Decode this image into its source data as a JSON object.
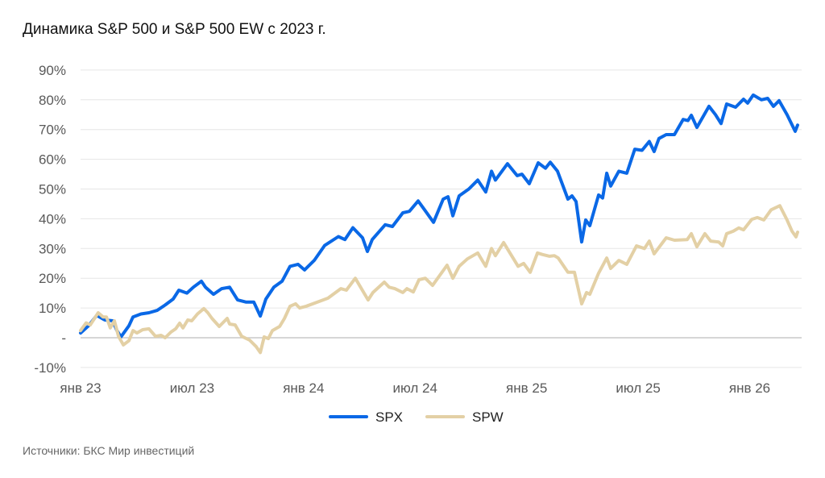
{
  "chart_data": {
    "type": "line",
    "title": "Динамика S&P 500 и S&P 500 EW с 2023 г.",
    "xlabel": "",
    "ylabel": "",
    "x_unit": "months since Jan 2023",
    "xlim": [
      0,
      38.8
    ],
    "ylim": [
      -10,
      90
    ],
    "grid": true,
    "legend_position": "bottom",
    "y_ticks": [
      {
        "value": 90,
        "label": "90%"
      },
      {
        "value": 80,
        "label": "80%"
      },
      {
        "value": 70,
        "label": "70%"
      },
      {
        "value": 60,
        "label": "60%"
      },
      {
        "value": 50,
        "label": "50%"
      },
      {
        "value": 40,
        "label": "40%"
      },
      {
        "value": 30,
        "label": "30%"
      },
      {
        "value": 20,
        "label": "20%"
      },
      {
        "value": 10,
        "label": "10%"
      },
      {
        "value": 0,
        "label": "-"
      },
      {
        "value": -10,
        "label": "-10%"
      }
    ],
    "x_ticks": [
      {
        "value": 0,
        "label": "янв 23"
      },
      {
        "value": 6,
        "label": "июл 23"
      },
      {
        "value": 12,
        "label": "янв 24"
      },
      {
        "value": 18,
        "label": "июл 24"
      },
      {
        "value": 24,
        "label": "янв 25"
      },
      {
        "value": 30,
        "label": "июл 25"
      },
      {
        "value": 36,
        "label": "янв 26"
      }
    ],
    "series": [
      {
        "name": "SPX",
        "color": "#0a68e6",
        "points": [
          [
            0,
            1.6
          ],
          [
            0.43,
            4
          ],
          [
            0.87,
            7.5
          ],
          [
            1.3,
            6
          ],
          [
            1.73,
            5.7
          ],
          [
            1.95,
            2.5
          ],
          [
            2.17,
            0.3
          ],
          [
            2.6,
            4
          ],
          [
            2.82,
            7
          ],
          [
            3.25,
            8
          ],
          [
            3.68,
            8.4
          ],
          [
            4.12,
            9.2
          ],
          [
            4.55,
            11
          ],
          [
            4.98,
            13
          ],
          [
            5.29,
            16
          ],
          [
            5.72,
            15
          ],
          [
            6.07,
            17
          ],
          [
            6.5,
            19
          ],
          [
            6.72,
            17
          ],
          [
            7.15,
            14.6
          ],
          [
            7.59,
            16.5
          ],
          [
            8.02,
            17
          ],
          [
            8.45,
            12.7
          ],
          [
            8.89,
            12
          ],
          [
            9.32,
            12
          ],
          [
            9.67,
            7.3
          ],
          [
            9.97,
            13
          ],
          [
            10.4,
            17
          ],
          [
            10.84,
            19
          ],
          [
            11.27,
            24
          ],
          [
            11.7,
            24.7
          ],
          [
            12.05,
            22.8
          ],
          [
            12.57,
            26
          ],
          [
            13.13,
            31
          ],
          [
            13.87,
            34
          ],
          [
            14.22,
            33
          ],
          [
            14.65,
            37
          ],
          [
            15.17,
            33.6
          ],
          [
            15.43,
            29
          ],
          [
            15.69,
            33
          ],
          [
            16.39,
            38
          ],
          [
            16.78,
            37.4
          ],
          [
            17.34,
            42
          ],
          [
            17.69,
            42.5
          ],
          [
            18.16,
            46
          ],
          [
            18.51,
            43
          ],
          [
            18.99,
            38.8
          ],
          [
            19.51,
            46.6
          ],
          [
            19.77,
            47.4
          ],
          [
            20.03,
            41
          ],
          [
            20.37,
            47.7
          ],
          [
            20.89,
            50
          ],
          [
            21.37,
            53
          ],
          [
            21.8,
            49
          ],
          [
            22.11,
            56
          ],
          [
            22.32,
            53
          ],
          [
            22.97,
            58.5
          ],
          [
            23.49,
            54.5
          ],
          [
            23.75,
            55
          ],
          [
            24.14,
            51.8
          ],
          [
            24.62,
            58.8
          ],
          [
            25.01,
            57
          ],
          [
            25.27,
            59
          ],
          [
            25.66,
            56
          ],
          [
            26.22,
            46.6
          ],
          [
            26.44,
            47.7
          ],
          [
            26.66,
            45.8
          ],
          [
            26.96,
            32.2
          ],
          [
            27.18,
            39.6
          ],
          [
            27.4,
            37.7
          ],
          [
            27.87,
            48
          ],
          [
            28.09,
            47
          ],
          [
            28.31,
            55.3
          ],
          [
            28.52,
            51
          ],
          [
            28.96,
            56
          ],
          [
            29.39,
            55.3
          ],
          [
            29.82,
            63.4
          ],
          [
            30.21,
            63
          ],
          [
            30.6,
            66
          ],
          [
            30.86,
            62.6
          ],
          [
            31.12,
            67
          ],
          [
            31.51,
            68.3
          ],
          [
            31.95,
            68.3
          ],
          [
            32.42,
            73.4
          ],
          [
            32.68,
            73
          ],
          [
            32.86,
            74.8
          ],
          [
            33.16,
            70.7
          ],
          [
            33.81,
            77.8
          ],
          [
            34.16,
            75
          ],
          [
            34.46,
            72
          ],
          [
            34.76,
            78.6
          ],
          [
            35.24,
            77.5
          ],
          [
            35.67,
            80.2
          ],
          [
            35.89,
            78.9
          ],
          [
            36.19,
            81.6
          ],
          [
            36.63,
            80
          ],
          [
            36.97,
            80.5
          ],
          [
            37.28,
            77.8
          ],
          [
            37.58,
            79.7
          ],
          [
            38.01,
            75
          ],
          [
            38.45,
            69.4
          ],
          [
            38.58,
            71.5
          ]
        ]
      },
      {
        "name": "SPW",
        "color": "#e3d0a5",
        "points": [
          [
            0,
            2.4
          ],
          [
            0.3,
            5
          ],
          [
            0.52,
            4.3
          ],
          [
            0.95,
            8.4
          ],
          [
            1.21,
            7
          ],
          [
            1.39,
            7
          ],
          [
            1.6,
            3.3
          ],
          [
            1.82,
            5.7
          ],
          [
            2.04,
            0.5
          ],
          [
            2.3,
            -2.4
          ],
          [
            2.6,
            -1
          ],
          [
            2.82,
            2.4
          ],
          [
            3.03,
            1.6
          ],
          [
            3.34,
            2.7
          ],
          [
            3.68,
            3
          ],
          [
            4.03,
            0.5
          ],
          [
            4.33,
            0.8
          ],
          [
            4.55,
            0
          ],
          [
            4.86,
            1.9
          ],
          [
            5.12,
            3
          ],
          [
            5.33,
            4.9
          ],
          [
            5.51,
            3.3
          ],
          [
            5.77,
            6
          ],
          [
            5.98,
            5.7
          ],
          [
            6.29,
            8
          ],
          [
            6.63,
            9.8
          ],
          [
            6.85,
            8.4
          ],
          [
            7.07,
            6.5
          ],
          [
            7.46,
            3.8
          ],
          [
            7.89,
            6.5
          ],
          [
            8.02,
            4.6
          ],
          [
            8.32,
            4.3
          ],
          [
            8.67,
            0.5
          ],
          [
            9.1,
            -0.8
          ],
          [
            9.45,
            -3
          ],
          [
            9.67,
            -5
          ],
          [
            9.88,
            0.3
          ],
          [
            10.1,
            -0.3
          ],
          [
            10.32,
            2.4
          ],
          [
            10.71,
            3.8
          ],
          [
            10.97,
            6.5
          ],
          [
            11.27,
            10.6
          ],
          [
            11.57,
            11.4
          ],
          [
            11.79,
            10
          ],
          [
            12.14,
            10.6
          ],
          [
            12.7,
            11.9
          ],
          [
            13.31,
            13.3
          ],
          [
            14,
            16.5
          ],
          [
            14.3,
            16
          ],
          [
            14.78,
            20
          ],
          [
            15.47,
            12.7
          ],
          [
            15.73,
            15.2
          ],
          [
            16.34,
            18.7
          ],
          [
            16.6,
            17
          ],
          [
            16.91,
            16.5
          ],
          [
            17.34,
            15.2
          ],
          [
            17.56,
            16.5
          ],
          [
            17.9,
            15.4
          ],
          [
            18.21,
            19.5
          ],
          [
            18.55,
            20
          ],
          [
            18.94,
            17.6
          ],
          [
            19.72,
            24.4
          ],
          [
            20.03,
            20
          ],
          [
            20.37,
            24
          ],
          [
            20.81,
            26.5
          ],
          [
            21.37,
            28.5
          ],
          [
            21.8,
            24
          ],
          [
            22.11,
            30
          ],
          [
            22.32,
            27.6
          ],
          [
            22.76,
            32
          ],
          [
            23.19,
            27.6
          ],
          [
            23.54,
            24
          ],
          [
            23.84,
            25
          ],
          [
            24.19,
            22
          ],
          [
            24.58,
            28.5
          ],
          [
            24.84,
            28
          ],
          [
            25.23,
            27.4
          ],
          [
            25.49,
            27.6
          ],
          [
            25.7,
            26.8
          ],
          [
            26.22,
            22
          ],
          [
            26.57,
            22
          ],
          [
            26.96,
            11.4
          ],
          [
            27.22,
            15.2
          ],
          [
            27.4,
            14.6
          ],
          [
            27.87,
            21.7
          ],
          [
            28.31,
            26.8
          ],
          [
            28.52,
            23.3
          ],
          [
            28.96,
            26
          ],
          [
            29.39,
            24.7
          ],
          [
            29.91,
            30.9
          ],
          [
            30.34,
            30
          ],
          [
            30.6,
            32.5
          ],
          [
            30.86,
            28.2
          ],
          [
            31.51,
            33.6
          ],
          [
            31.95,
            32.8
          ],
          [
            32.64,
            33
          ],
          [
            32.86,
            35
          ],
          [
            33.16,
            30.6
          ],
          [
            33.59,
            35
          ],
          [
            33.9,
            32.5
          ],
          [
            34.33,
            32.2
          ],
          [
            34.55,
            30.9
          ],
          [
            34.76,
            35
          ],
          [
            35.11,
            35.8
          ],
          [
            35.41,
            36.9
          ],
          [
            35.67,
            36.3
          ],
          [
            36.11,
            39.8
          ],
          [
            36.41,
            40.4
          ],
          [
            36.76,
            39.6
          ],
          [
            37.15,
            43
          ],
          [
            37.62,
            44.4
          ],
          [
            38.01,
            39.6
          ],
          [
            38.28,
            35.8
          ],
          [
            38.49,
            33.9
          ],
          [
            38.58,
            35.5
          ]
        ]
      }
    ],
    "source": "Источники: БКС Мир инвестиций"
  }
}
